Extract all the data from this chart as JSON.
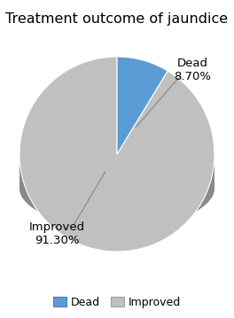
{
  "title": "Treatment outcome of jaundice",
  "slices": [
    8.7,
    91.3
  ],
  "labels": [
    "Dead",
    "Improved"
  ],
  "colors": [
    "#5B9BD5",
    "#C0C0C0"
  ],
  "side_colors": [
    "#4a7faa",
    "#8a8a8a"
  ],
  "bottom_color": "#707070",
  "edge_color": "#ffffff",
  "pct_labels": [
    "Dead\n8.70%",
    "Improved\n91.30%"
  ],
  "legend_labels": [
    "Dead",
    "Improved"
  ],
  "legend_colors": [
    "#5B9BD5",
    "#C0C0C0"
  ],
  "legend_edge_colors": [
    "#4a7faa",
    "#a0a0a0"
  ],
  "background_color": "#ffffff",
  "title_fontsize": 11.5,
  "label_fontsize": 9.5,
  "legend_fontsize": 9
}
